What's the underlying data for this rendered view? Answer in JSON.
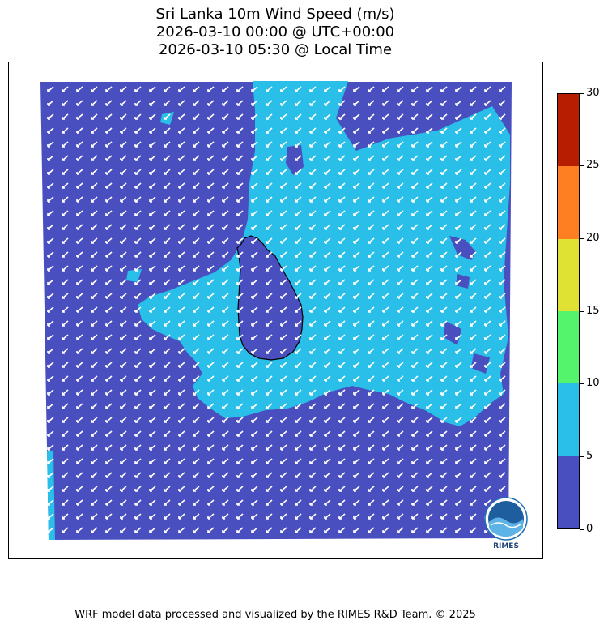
{
  "title_lines": [
    "Sri Lanka 10m Wind Speed (m/s)",
    "2026-03-10 00:00 @ UTC+00:00",
    "2026-03-10 05:30 @ Local Time"
  ],
  "colorbar": {
    "ticks": [
      "0",
      "5",
      "10",
      "15",
      "20",
      "25",
      "30"
    ],
    "colors": [
      "#4a4fbf",
      "#29bfe8",
      "#54f56d",
      "#dfe233",
      "#fd7f21",
      "#b71d00"
    ]
  },
  "map": {
    "land_color": "#000000",
    "arrow_color": "#ffffff",
    "wind_direction": "from north-east, pointing south-west"
  },
  "logo": {
    "text": "RIMES"
  },
  "footer": "WRF model data processed and visualized by the RIMES R&D Team. © 2025"
}
